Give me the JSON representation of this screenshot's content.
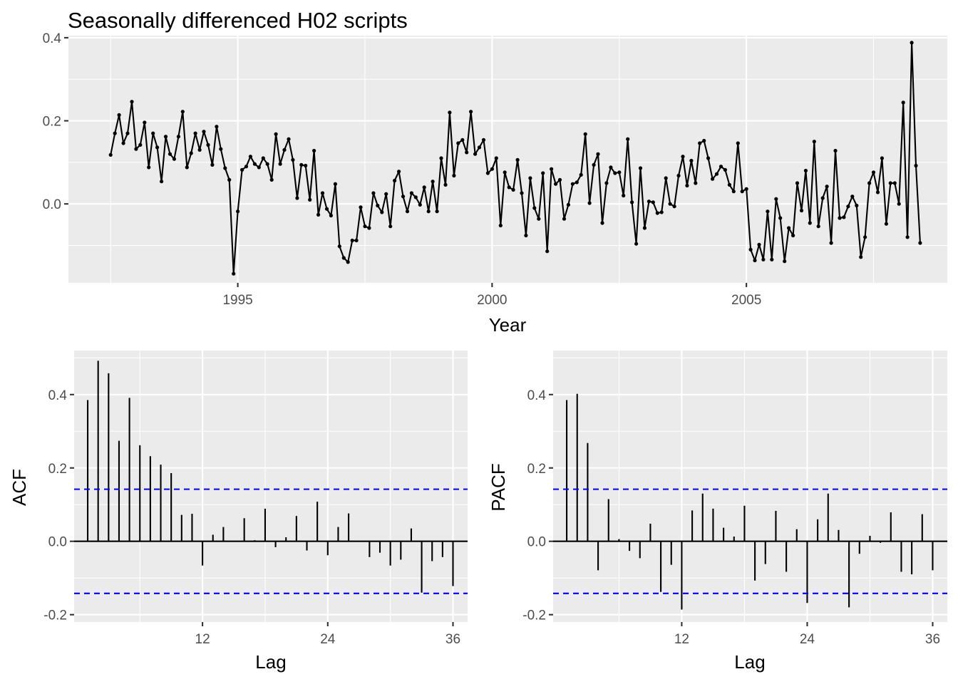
{
  "colors": {
    "panel": "#ebebeb",
    "grid": "#ffffff",
    "series": "#000000",
    "ci": "#0000ff",
    "tick_text": "#4d4d4d"
  },
  "chart_data": [
    {
      "type": "line",
      "title": "Seasonally differenced H02 scripts",
      "xlabel": "Year",
      "ylabel": "",
      "x_start": 1992.5,
      "x_step": 0.0833333,
      "xlim": [
        1991.67,
        2008.95
      ],
      "ylim": [
        -0.19,
        0.405
      ],
      "xticks": [
        1995,
        2000,
        2005
      ],
      "xtick_labels": [
        "1995",
        "2000",
        "2005"
      ],
      "yticks": [
        0.0,
        0.2,
        0.4
      ],
      "ytick_labels": [
        "0.0",
        "0.2",
        "0.4"
      ],
      "grid": true,
      "markers": true,
      "values": [
        0.118,
        0.17,
        0.214,
        0.146,
        0.17,
        0.246,
        0.132,
        0.142,
        0.196,
        0.088,
        0.17,
        0.136,
        0.054,
        0.162,
        0.12,
        0.108,
        0.162,
        0.222,
        0.088,
        0.122,
        0.17,
        0.13,
        0.174,
        0.142,
        0.094,
        0.186,
        0.132,
        0.086,
        0.058,
        -0.168,
        -0.018,
        0.082,
        0.09,
        0.114,
        0.096,
        0.088,
        0.11,
        0.096,
        0.058,
        0.168,
        0.096,
        0.13,
        0.156,
        0.106,
        0.014,
        0.094,
        0.092,
        0.01,
        0.128,
        -0.026,
        0.026,
        -0.012,
        -0.028,
        0.048,
        -0.102,
        -0.13,
        -0.14,
        -0.088,
        -0.088,
        -0.008,
        -0.054,
        -0.058,
        0.026,
        -0.004,
        -0.02,
        0.024,
        -0.054,
        0.056,
        0.078,
        0.018,
        -0.018,
        0.026,
        0.016,
        -0.002,
        0.04,
        -0.018,
        0.054,
        -0.018,
        0.11,
        0.046,
        0.22,
        0.068,
        0.146,
        0.154,
        0.124,
        0.222,
        0.12,
        0.136,
        0.154,
        0.074,
        0.084,
        0.11,
        -0.052,
        0.076,
        0.04,
        0.034,
        0.106,
        0.026,
        -0.076,
        0.062,
        -0.01,
        -0.036,
        0.074,
        -0.114,
        0.084,
        0.048,
        0.058,
        -0.036,
        -0.002,
        0.048,
        0.052,
        0.07,
        0.168,
        0.002,
        0.094,
        0.12,
        -0.046,
        0.05,
        0.088,
        0.074,
        0.076,
        0.02,
        0.156,
        0.004,
        -0.096,
        0.086,
        -0.058,
        0.006,
        0.004,
        -0.022,
        -0.02,
        0.062,
        0.0,
        -0.006,
        0.068,
        0.114,
        0.044,
        0.104,
        0.05,
        0.146,
        0.152,
        0.11,
        0.06,
        0.072,
        0.09,
        0.082,
        0.046,
        0.03,
        0.146,
        0.03,
        0.036,
        -0.11,
        -0.136,
        -0.098,
        -0.134,
        -0.018,
        -0.134,
        0.012,
        -0.034,
        -0.138,
        -0.058,
        -0.076,
        0.05,
        -0.016,
        0.08,
        -0.046,
        0.15,
        -0.054,
        0.014,
        0.042,
        -0.094,
        0.128,
        -0.034,
        -0.032,
        -0.006,
        0.018,
        -0.004,
        -0.128,
        -0.08,
        0.05,
        0.076,
        0.028,
        0.11,
        -0.048,
        0.05,
        0.05,
        0.0,
        0.244,
        -0.08,
        0.388,
        0.092,
        -0.094
      ]
    },
    {
      "type": "bar",
      "title": "",
      "xlabel": "Lag",
      "ylabel": "ACF",
      "lags": [
        1,
        2,
        3,
        4,
        5,
        6,
        7,
        8,
        9,
        10,
        11,
        12,
        13,
        14,
        15,
        16,
        17,
        18,
        19,
        20,
        21,
        22,
        23,
        24,
        25,
        26,
        27,
        28,
        29,
        30,
        31,
        32,
        33,
        34,
        35,
        36
      ],
      "values": [
        0.385,
        0.492,
        0.458,
        0.274,
        0.391,
        0.262,
        0.232,
        0.209,
        0.186,
        0.072,
        0.075,
        -0.066,
        0.018,
        0.039,
        0.0,
        0.063,
        0.003,
        0.089,
        -0.016,
        0.011,
        0.069,
        -0.025,
        0.108,
        -0.038,
        0.039,
        0.076,
        0.0,
        -0.043,
        -0.031,
        -0.066,
        -0.05,
        0.035,
        -0.14,
        -0.054,
        -0.043,
        -0.122
      ],
      "ci": 0.142,
      "xlim": [
        -0.3,
        37.4
      ],
      "ylim": [
        -0.22,
        0.52
      ],
      "xticks": [
        12,
        24,
        36
      ],
      "xtick_labels": [
        "12",
        "24",
        "36"
      ],
      "yticks": [
        -0.2,
        0.0,
        0.2,
        0.4
      ],
      "ytick_labels": [
        "-0.2",
        "0.0",
        "0.2",
        "0.4"
      ],
      "grid": true
    },
    {
      "type": "bar",
      "title": "",
      "xlabel": "Lag",
      "ylabel": "PACF",
      "lags": [
        1,
        2,
        3,
        4,
        5,
        6,
        7,
        8,
        9,
        10,
        11,
        12,
        13,
        14,
        15,
        16,
        17,
        18,
        19,
        20,
        21,
        22,
        23,
        24,
        25,
        26,
        27,
        28,
        29,
        30,
        31,
        32,
        33,
        34,
        35,
        36
      ],
      "values": [
        0.385,
        0.402,
        0.268,
        -0.079,
        0.115,
        0.006,
        -0.026,
        -0.046,
        0.048,
        -0.138,
        -0.064,
        -0.186,
        0.084,
        0.13,
        0.089,
        0.037,
        0.013,
        0.097,
        -0.107,
        -0.062,
        0.083,
        -0.083,
        0.033,
        -0.168,
        0.06,
        0.13,
        0.031,
        -0.18,
        -0.034,
        0.015,
        -0.004,
        0.079,
        -0.083,
        -0.09,
        0.074,
        -0.079
      ],
      "ci": 0.142,
      "xlim": [
        -0.3,
        37.4
      ],
      "ylim": [
        -0.22,
        0.52
      ],
      "xticks": [
        12,
        24,
        36
      ],
      "xtick_labels": [
        "12",
        "24",
        "36"
      ],
      "yticks": [
        -0.2,
        0.0,
        0.2,
        0.4
      ],
      "ytick_labels": [
        "-0.2",
        "0.0",
        "0.2",
        "0.4"
      ],
      "grid": true
    }
  ]
}
